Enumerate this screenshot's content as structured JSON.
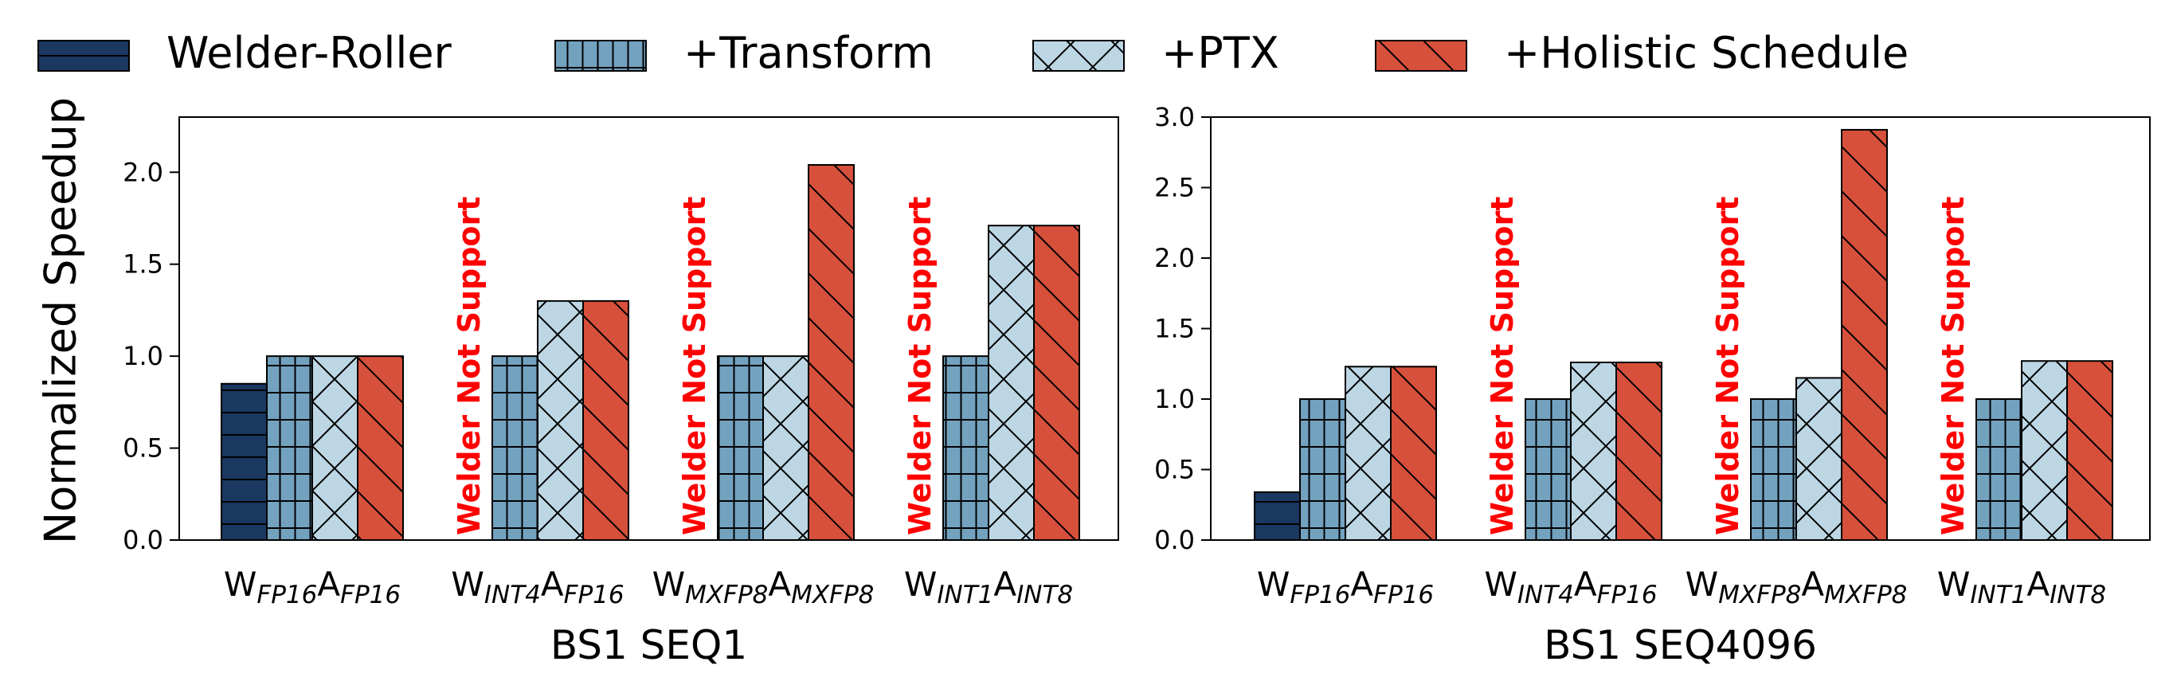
{
  "legend": [
    {
      "name": "Welder-Roller",
      "color": "#1a3860",
      "pattern": "hline"
    },
    {
      "name": "+Transform",
      "color": "#73a2bf",
      "pattern": "grid"
    },
    {
      "name": "+PTX",
      "color": "#bcd6e4",
      "pattern": "cross"
    },
    {
      "name": "+Holistic Schedule",
      "color": "#d6503b",
      "pattern": "diag"
    }
  ],
  "chart_data": [
    {
      "type": "bar",
      "title": "",
      "xlabel": "BS1 SEQ1",
      "ylabel": "Normalized Speedup",
      "ylim": [
        0,
        2.3
      ],
      "yticks": [
        "0.0",
        "0.5",
        "1.0",
        "1.5",
        "2.0"
      ],
      "categories": [
        {
          "w": "W",
          "wsub": "FP16",
          "a": "A",
          "asub": "FP16"
        },
        {
          "w": "W",
          "wsub": "INT4",
          "a": "A",
          "asub": "FP16"
        },
        {
          "w": "W",
          "wsub": "MXFP8",
          "a": "A",
          "asub": "MXFP8"
        },
        {
          "w": "W",
          "wsub": "INT1",
          "a": "A",
          "asub": "INT8"
        }
      ],
      "series": [
        {
          "name": "Welder-Roller",
          "values": [
            0.85,
            null,
            null,
            null
          ]
        },
        {
          "name": "+Transform",
          "values": [
            1.0,
            1.0,
            1.0,
            1.0
          ]
        },
        {
          "name": "+PTX",
          "values": [
            1.0,
            1.3,
            1.0,
            1.71
          ]
        },
        {
          "name": "+Holistic Schedule",
          "values": [
            1.0,
            1.3,
            2.04,
            1.71
          ]
        }
      ],
      "annotations": [
        "",
        "Welder Not Support",
        "Welder Not Support",
        "Welder Not Support"
      ]
    },
    {
      "type": "bar",
      "title": "",
      "xlabel": "BS1 SEQ4096",
      "ylabel": "",
      "ylim": [
        0,
        3.0
      ],
      "yticks": [
        "0.0",
        "0.5",
        "1.0",
        "1.5",
        "2.0",
        "2.5",
        "3.0"
      ],
      "categories": [
        {
          "w": "W",
          "wsub": "FP16",
          "a": "A",
          "asub": "FP16"
        },
        {
          "w": "W",
          "wsub": "INT4",
          "a": "A",
          "asub": "FP16"
        },
        {
          "w": "W",
          "wsub": "MXFP8",
          "a": "A",
          "asub": "MXFP8"
        },
        {
          "w": "W",
          "wsub": "INT1",
          "a": "A",
          "asub": "INT8"
        }
      ],
      "series": [
        {
          "name": "Welder-Roller",
          "values": [
            0.34,
            null,
            null,
            null
          ]
        },
        {
          "name": "+Transform",
          "values": [
            1.0,
            1.0,
            1.0,
            1.0
          ]
        },
        {
          "name": "+PTX",
          "values": [
            1.23,
            1.26,
            1.15,
            1.27
          ]
        },
        {
          "name": "+Holistic Schedule",
          "values": [
            1.23,
            1.26,
            2.91,
            1.27
          ]
        }
      ],
      "annotations": [
        "",
        "Welder Not Support",
        "Welder Not Support",
        "Welder Not Support"
      ]
    }
  ]
}
